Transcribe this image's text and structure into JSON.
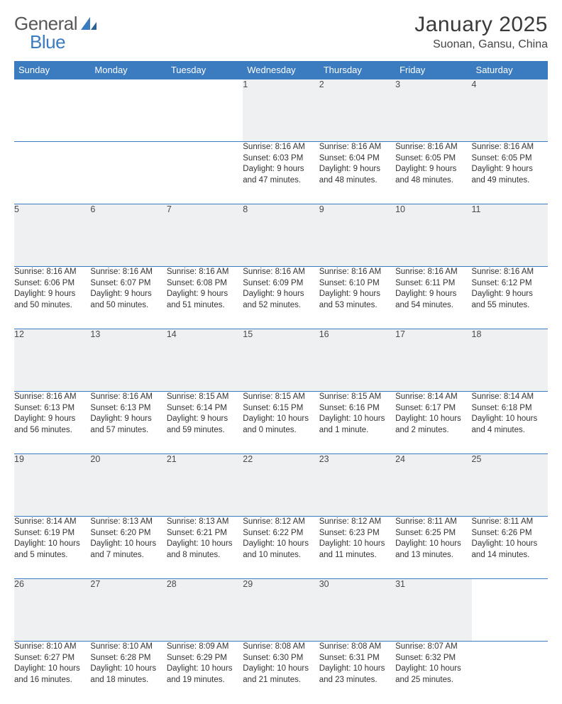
{
  "brand": {
    "part1": "General",
    "part2": "Blue"
  },
  "title": "January 2025",
  "location": "Suonan, Gansu, China",
  "colors": {
    "header_bg": "#3b7bbf",
    "header_text": "#ffffff",
    "daynum_bg": "#eef0f2",
    "border": "#3b7bbf",
    "body_text": "#333333",
    "logo_gray": "#585858",
    "logo_blue": "#3b7bbf"
  },
  "weekdays": [
    "Sunday",
    "Monday",
    "Tuesday",
    "Wednesday",
    "Thursday",
    "Friday",
    "Saturday"
  ],
  "weeks": [
    [
      null,
      null,
      null,
      {
        "n": "1",
        "sr": "8:16 AM",
        "ss": "6:03 PM",
        "dl": "9 hours and 47 minutes."
      },
      {
        "n": "2",
        "sr": "8:16 AM",
        "ss": "6:04 PM",
        "dl": "9 hours and 48 minutes."
      },
      {
        "n": "3",
        "sr": "8:16 AM",
        "ss": "6:05 PM",
        "dl": "9 hours and 48 minutes."
      },
      {
        "n": "4",
        "sr": "8:16 AM",
        "ss": "6:05 PM",
        "dl": "9 hours and 49 minutes."
      }
    ],
    [
      {
        "n": "5",
        "sr": "8:16 AM",
        "ss": "6:06 PM",
        "dl": "9 hours and 50 minutes."
      },
      {
        "n": "6",
        "sr": "8:16 AM",
        "ss": "6:07 PM",
        "dl": "9 hours and 50 minutes."
      },
      {
        "n": "7",
        "sr": "8:16 AM",
        "ss": "6:08 PM",
        "dl": "9 hours and 51 minutes."
      },
      {
        "n": "8",
        "sr": "8:16 AM",
        "ss": "6:09 PM",
        "dl": "9 hours and 52 minutes."
      },
      {
        "n": "9",
        "sr": "8:16 AM",
        "ss": "6:10 PM",
        "dl": "9 hours and 53 minutes."
      },
      {
        "n": "10",
        "sr": "8:16 AM",
        "ss": "6:11 PM",
        "dl": "9 hours and 54 minutes."
      },
      {
        "n": "11",
        "sr": "8:16 AM",
        "ss": "6:12 PM",
        "dl": "9 hours and 55 minutes."
      }
    ],
    [
      {
        "n": "12",
        "sr": "8:16 AM",
        "ss": "6:13 PM",
        "dl": "9 hours and 56 minutes."
      },
      {
        "n": "13",
        "sr": "8:16 AM",
        "ss": "6:13 PM",
        "dl": "9 hours and 57 minutes."
      },
      {
        "n": "14",
        "sr": "8:15 AM",
        "ss": "6:14 PM",
        "dl": "9 hours and 59 minutes."
      },
      {
        "n": "15",
        "sr": "8:15 AM",
        "ss": "6:15 PM",
        "dl": "10 hours and 0 minutes."
      },
      {
        "n": "16",
        "sr": "8:15 AM",
        "ss": "6:16 PM",
        "dl": "10 hours and 1 minute."
      },
      {
        "n": "17",
        "sr": "8:14 AM",
        "ss": "6:17 PM",
        "dl": "10 hours and 2 minutes."
      },
      {
        "n": "18",
        "sr": "8:14 AM",
        "ss": "6:18 PM",
        "dl": "10 hours and 4 minutes."
      }
    ],
    [
      {
        "n": "19",
        "sr": "8:14 AM",
        "ss": "6:19 PM",
        "dl": "10 hours and 5 minutes."
      },
      {
        "n": "20",
        "sr": "8:13 AM",
        "ss": "6:20 PM",
        "dl": "10 hours and 7 minutes."
      },
      {
        "n": "21",
        "sr": "8:13 AM",
        "ss": "6:21 PM",
        "dl": "10 hours and 8 minutes."
      },
      {
        "n": "22",
        "sr": "8:12 AM",
        "ss": "6:22 PM",
        "dl": "10 hours and 10 minutes."
      },
      {
        "n": "23",
        "sr": "8:12 AM",
        "ss": "6:23 PM",
        "dl": "10 hours and 11 minutes."
      },
      {
        "n": "24",
        "sr": "8:11 AM",
        "ss": "6:25 PM",
        "dl": "10 hours and 13 minutes."
      },
      {
        "n": "25",
        "sr": "8:11 AM",
        "ss": "6:26 PM",
        "dl": "10 hours and 14 minutes."
      }
    ],
    [
      {
        "n": "26",
        "sr": "8:10 AM",
        "ss": "6:27 PM",
        "dl": "10 hours and 16 minutes."
      },
      {
        "n": "27",
        "sr": "8:10 AM",
        "ss": "6:28 PM",
        "dl": "10 hours and 18 minutes."
      },
      {
        "n": "28",
        "sr": "8:09 AM",
        "ss": "6:29 PM",
        "dl": "10 hours and 19 minutes."
      },
      {
        "n": "29",
        "sr": "8:08 AM",
        "ss": "6:30 PM",
        "dl": "10 hours and 21 minutes."
      },
      {
        "n": "30",
        "sr": "8:08 AM",
        "ss": "6:31 PM",
        "dl": "10 hours and 23 minutes."
      },
      {
        "n": "31",
        "sr": "8:07 AM",
        "ss": "6:32 PM",
        "dl": "10 hours and 25 minutes."
      },
      null
    ]
  ],
  "labels": {
    "sunrise": "Sunrise: ",
    "sunset": "Sunset: ",
    "daylight": "Daylight: "
  }
}
